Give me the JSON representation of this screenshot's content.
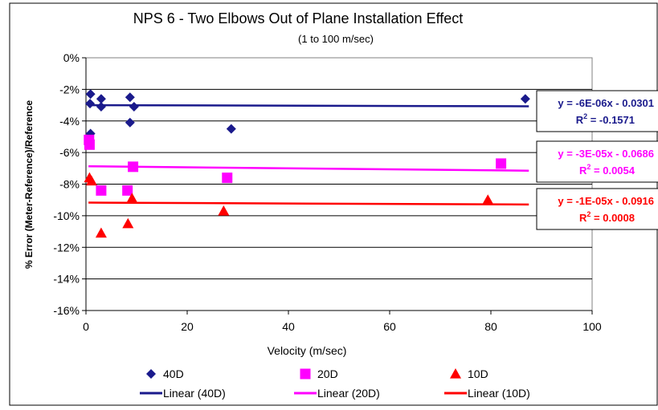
{
  "chart_data": {
    "type": "scatter",
    "title": "NPS 6 - Two Elbows Out of Plane Installation Effect",
    "subtitle": "(1 to 100 m/sec)",
    "xlabel": "Velocity (m/sec)",
    "ylabel": "% Error (Meter-Reference)/Reference",
    "xlim": [
      0,
      100
    ],
    "ylim": [
      -16,
      0
    ],
    "x_ticks": [
      "0",
      "20",
      "40",
      "60",
      "80",
      "100"
    ],
    "y_ticks": [
      "0%",
      "-2%",
      "-4%",
      "-6%",
      "-8%",
      "-10%",
      "-12%",
      "-14%",
      "-16%"
    ],
    "grid": true,
    "legend_position": "bottom",
    "series": [
      {
        "name": "40D",
        "marker": "diamond",
        "color": "#1a1a8c",
        "points": [
          [
            0.9,
            -2.3
          ],
          [
            0.8,
            -2.9
          ],
          [
            0.9,
            -4.8
          ],
          [
            3,
            -2.6
          ],
          [
            3,
            -3.1
          ],
          [
            8.7,
            -2.5
          ],
          [
            9.5,
            -3.1
          ],
          [
            8.7,
            -4.1
          ],
          [
            28.7,
            -4.5
          ],
          [
            86.8,
            -2.6
          ]
        ]
      },
      {
        "name": "20D",
        "marker": "square",
        "color": "#ff00ff",
        "points": [
          [
            0.6,
            -5.2
          ],
          [
            0.7,
            -5.5
          ],
          [
            3,
            -8.4
          ],
          [
            8.2,
            -8.4
          ],
          [
            9.3,
            -6.9
          ],
          [
            27.9,
            -7.6
          ],
          [
            82,
            -6.7
          ]
        ]
      },
      {
        "name": "10D",
        "marker": "triangle",
        "color": "#ff0000",
        "points": [
          [
            0.7,
            -7.6
          ],
          [
            1.1,
            -7.8
          ],
          [
            3,
            -11.1
          ],
          [
            8.3,
            -10.5
          ],
          [
            9.1,
            -8.9
          ],
          [
            27.2,
            -9.7
          ],
          [
            79.4,
            -9.0
          ]
        ]
      }
    ],
    "trendlines": [
      {
        "name": "Linear (40D)",
        "color": "#1a1a8c",
        "x_range": [
          0.5,
          87.5
        ],
        "y_at_start": -3.0,
        "y_at_end": -3.07,
        "equation": "y = -6E-06x - 0.0301",
        "r2_prefix": "R",
        "r2_sup": "2",
        "r2_value": " = -0.1571"
      },
      {
        "name": "Linear (20D)",
        "color": "#ff00ff",
        "x_range": [
          0.5,
          87.5
        ],
        "y_at_start": -6.87,
        "y_at_end": -7.15,
        "equation": "y = -3E-05x - 0.0686",
        "r2_prefix": "R",
        "r2_sup": "2",
        "r2_value": " = 0.0054"
      },
      {
        "name": "Linear (10D)",
        "color": "#ff0000",
        "x_range": [
          0.5,
          87.5
        ],
        "y_at_start": -9.17,
        "y_at_end": -9.29,
        "equation": "y = -1E-05x - 0.0916",
        "r2_prefix": "R",
        "r2_sup": "2",
        "r2_value": " = 0.0008"
      }
    ]
  }
}
